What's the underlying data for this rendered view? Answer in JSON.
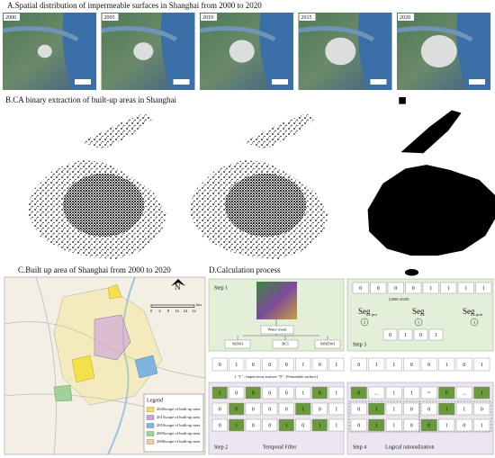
{
  "panel_a": {
    "title": "A.Spatial distribution of impermeable surfaces in Shanghai from 2000 to 2020",
    "years": [
      "2000",
      "2005",
      "2010",
      "2015",
      "2020"
    ]
  },
  "panel_b": {
    "title": "B.CA binary extraction of built-up areas in Shanghai"
  },
  "panel_c": {
    "title": "C.Built up area of Shanghai from 2000 to 2020",
    "north": "N",
    "scale_ticks": [
      0,
      4,
      8,
      16,
      24,
      32
    ],
    "scale_unit": "km",
    "legend_title": "Legend",
    "legend": [
      "2020scope of built-up area",
      "2015scope of built-up area",
      "2010scope of built-up area",
      "2005scope of built-up area",
      "2000scope of built-up area"
    ],
    "legend_colors": [
      "#f4e04a",
      "#c9a0dc",
      "#7fb3e0",
      "#9ed29a",
      "#f7c9a0"
    ]
  },
  "panel_d": {
    "title": "D.Calculation process",
    "step1": {
      "label": "Step 1",
      "water_mask": "Water mask",
      "indices": [
        "NDWI",
        "BCI",
        "MNDWI"
      ]
    },
    "step3": {
      "label": "Step 3",
      "sequence": [
        0,
        0,
        0,
        0,
        1,
        1,
        1,
        1
      ],
      "period": "[2000-2020]",
      "seg": "Seg",
      "seg_pre_sub": "pre",
      "seg_post_sub": "post",
      "circles": [
        "2",
        "1",
        "3"
      ],
      "segment": [
        0,
        1,
        0,
        1
      ]
    },
    "sequence_left": [
      0,
      1,
      0,
      0,
      0,
      1,
      0,
      1
    ],
    "sequence_right": [
      0,
      1,
      1,
      0,
      0,
      1,
      0,
      1
    ],
    "note": "[ \"1\" : impervious surface  \"0\" : Permeable surface]",
    "step2": {
      "label": "Step 2",
      "caption": "Temporal Filter",
      "highlight_color": "#6a9a3c",
      "rows": [
        [
          1,
          0,
          0,
          0,
          0,
          1,
          0,
          1
        ],
        [
          0,
          0,
          0,
          0,
          0,
          1,
          0,
          1
        ],
        [
          0,
          1,
          0,
          0,
          1,
          0,
          1,
          1
        ]
      ],
      "highlight": [
        [
          0,
          2,
          6
        ],
        [
          1,
          5
        ],
        [
          1,
          4,
          6
        ]
      ]
    },
    "step4": {
      "label": "Step 4",
      "caption": "Logical rationalization",
      "highlight_color": "#6a9a3c",
      "rows": [
        [
          0,
          "...",
          1,
          1,
          "=",
          0,
          "...",
          1
        ],
        [
          0,
          1,
          1,
          0,
          0,
          1,
          1,
          0
        ],
        [
          0,
          1,
          1,
          0,
          0,
          1,
          0,
          1
        ]
      ],
      "highlight": [
        [
          0,
          5,
          7
        ],
        [
          1,
          5
        ],
        [
          1,
          4
        ]
      ]
    }
  }
}
